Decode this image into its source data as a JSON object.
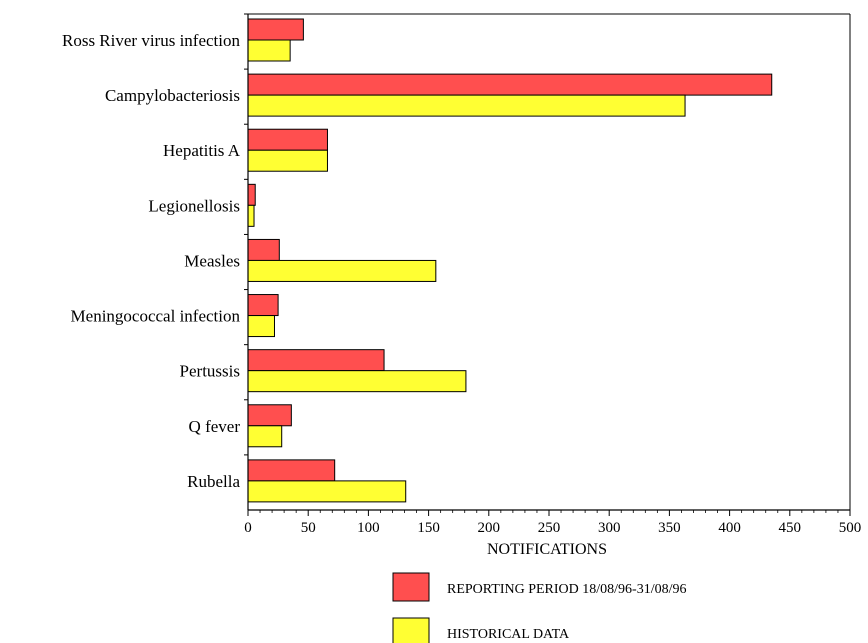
{
  "chart_data": {
    "type": "bar",
    "orientation": "horizontal",
    "title": "",
    "xlabel": "NOTIFICATIONS",
    "ylabel": "",
    "xlim": [
      0,
      500
    ],
    "x_ticks": [
      0,
      50,
      100,
      150,
      200,
      250,
      300,
      350,
      400,
      450,
      500
    ],
    "grid": false,
    "legend_position": "bottom",
    "categories": [
      "Ross River virus infection",
      "Campylobacteriosis",
      "Hepatitis A",
      "Legionellosis",
      "Measles",
      "Meningococcal infection",
      "Pertussis",
      "Q fever",
      "Rubella"
    ],
    "series": [
      {
        "name": "REPORTING PERIOD 18/08/96-31/08/96",
        "color": "#ff4f4f",
        "values": [
          46,
          435,
          66,
          6,
          26,
          25,
          113,
          36,
          72
        ]
      },
      {
        "name": "HISTORICAL DATA",
        "color": "#ffff33",
        "values": [
          35,
          363,
          66,
          5,
          156,
          22,
          181,
          28,
          131
        ]
      }
    ]
  }
}
